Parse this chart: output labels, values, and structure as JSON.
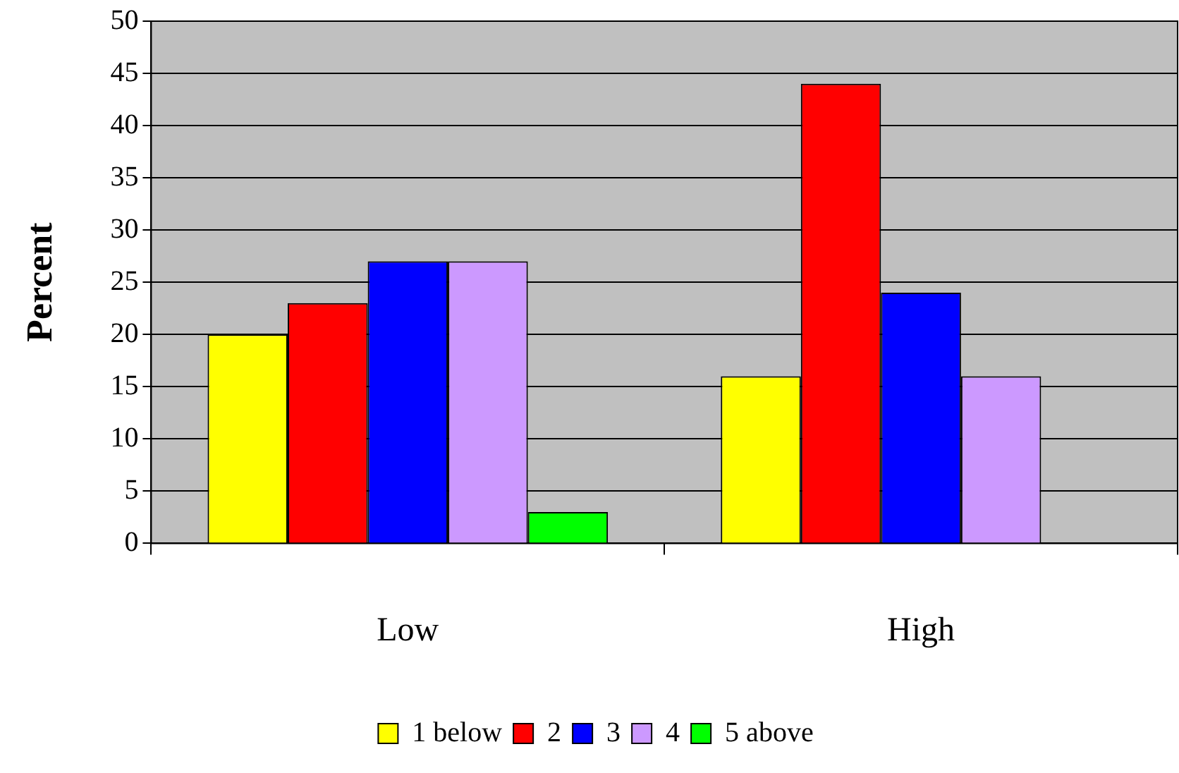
{
  "chart_data": {
    "type": "bar",
    "ylabel": "Percent",
    "categories": [
      "Low",
      "High"
    ],
    "series": [
      {
        "name": "1 below",
        "color": "#ffff00",
        "values": [
          20,
          16
        ]
      },
      {
        "name": "2",
        "color": "#ff0000",
        "values": [
          23,
          44
        ]
      },
      {
        "name": "3",
        "color": "#0000ff",
        "values": [
          27,
          24
        ]
      },
      {
        "name": "4",
        "color": "#cc99ff",
        "values": [
          27,
          16
        ]
      },
      {
        "name": "5 above",
        "color": "#00ff00",
        "values": [
          3,
          0
        ]
      }
    ],
    "ylim": [
      0,
      50
    ],
    "yticks": [
      0,
      5,
      10,
      15,
      20,
      25,
      30,
      35,
      40,
      45,
      50
    ],
    "grid": "y",
    "legend": "bottom"
  }
}
